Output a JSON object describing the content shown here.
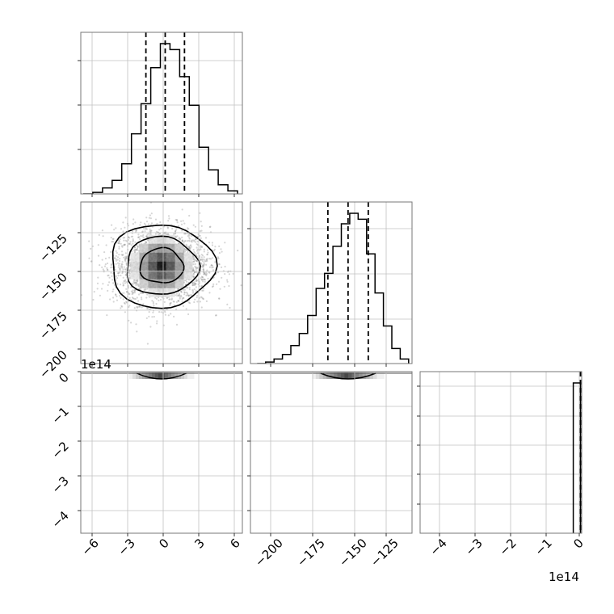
{
  "chart_data": [
    {
      "type": "histogram",
      "panel": "p00",
      "xlim": [
        -6.7,
        6.7
      ],
      "ylim": [
        0,
        1.0
      ],
      "grid": true,
      "bin_edges": [
        -6.5,
        -5.7,
        -4.9,
        -4.1,
        -3.3,
        -2.5,
        -1.7,
        -0.9,
        -0.1,
        0.7,
        1.5,
        2.3,
        3.1,
        3.9,
        4.7,
        5.5,
        6.3
      ],
      "counts": [
        0.0,
        0.01,
        0.04,
        0.09,
        0.2,
        0.4,
        0.6,
        0.84,
        1.0,
        0.96,
        0.78,
        0.59,
        0.31,
        0.16,
        0.06,
        0.02
      ],
      "quantiles": [
        -1.3,
        0.3,
        1.9
      ]
    },
    {
      "type": "scatter-density",
      "panel": "p10",
      "xlim": [
        -6.7,
        6.7
      ],
      "ylim": [
        -208,
        -112
      ],
      "center": [
        0,
        -150
      ],
      "sigma": [
        2.0,
        11.5
      ],
      "contour_radii_sigma": [
        0.9,
        1.5,
        2.15
      ],
      "grid": true
    },
    {
      "type": "histogram",
      "panel": "p11",
      "xlim": [
        -208,
        -112
      ],
      "ylim": [
        0,
        1.0
      ],
      "grid": true,
      "bin_edges": [
        -204,
        -199,
        -194,
        -189,
        -184,
        -179,
        -174,
        -169,
        -164,
        -159,
        -154,
        -149,
        -144,
        -139,
        -134,
        -129,
        -124,
        -119,
        -114
      ],
      "counts": [
        0.0,
        0.01,
        0.03,
        0.06,
        0.12,
        0.2,
        0.32,
        0.5,
        0.6,
        0.78,
        0.93,
        1.0,
        0.96,
        0.73,
        0.47,
        0.25,
        0.1,
        0.03
      ],
      "quantiles": [
        -162,
        -150,
        -138
      ]
    },
    {
      "type": "scatter-density",
      "panel": "p20",
      "xlim": [
        -6.7,
        6.7
      ],
      "ylim": [
        -4.55,
        0.05
      ],
      "offset": "1e14",
      "grid": true
    },
    {
      "type": "scatter-density",
      "panel": "p21",
      "xlim": [
        -208,
        -112
      ],
      "ylim": [
        -4.55,
        0.05
      ],
      "grid": true
    },
    {
      "type": "histogram",
      "panel": "p22",
      "xlim": [
        -4.6,
        0.03
      ],
      "ylim": [
        0,
        1.0
      ],
      "offset": "1e14",
      "grid": true,
      "bin_edges": [
        -0.21,
        -0.005
      ],
      "counts": [
        1.0
      ],
      "quantiles": [
        -0.005
      ]
    }
  ],
  "axes": {
    "p20": {
      "yticks": [
        {
          "value": 0,
          "label": "0"
        },
        {
          "value": -1,
          "label": "−1"
        },
        {
          "value": -2,
          "label": "−2"
        },
        {
          "value": -3,
          "label": "−3"
        },
        {
          "value": -4,
          "label": "−4"
        }
      ],
      "xticks": [
        {
          "value": -6,
          "label": "−6"
        },
        {
          "value": -3,
          "label": "−3"
        },
        {
          "value": 0,
          "label": "0"
        },
        {
          "value": 3,
          "label": "3"
        },
        {
          "value": 6,
          "label": "6"
        }
      ],
      "offset_text": "1e14"
    },
    "p10": {
      "yticks": [
        {
          "value": -125,
          "label": "−125"
        },
        {
          "value": -150,
          "label": "−150"
        },
        {
          "value": -175,
          "label": "−175"
        },
        {
          "value": -200,
          "label": "−200"
        }
      ]
    },
    "p21": {
      "xticks": [
        {
          "value": -200,
          "label": "−200"
        },
        {
          "value": -175,
          "label": "−175"
        },
        {
          "value": -150,
          "label": "−150"
        },
        {
          "value": -125,
          "label": "−125"
        }
      ]
    },
    "p22": {
      "xticks": [
        {
          "value": -4,
          "label": "−4"
        },
        {
          "value": -3,
          "label": "−3"
        },
        {
          "value": -2,
          "label": "−2"
        },
        {
          "value": -1,
          "label": "−1"
        },
        {
          "value": 0,
          "label": "0"
        }
      ],
      "offset_text": "1e14"
    }
  },
  "colors": {
    "line": "#000000",
    "grid": "#c0c0c0",
    "frame": "#777777",
    "density_light": "#e4e4e4",
    "density_dark": "#000000"
  }
}
